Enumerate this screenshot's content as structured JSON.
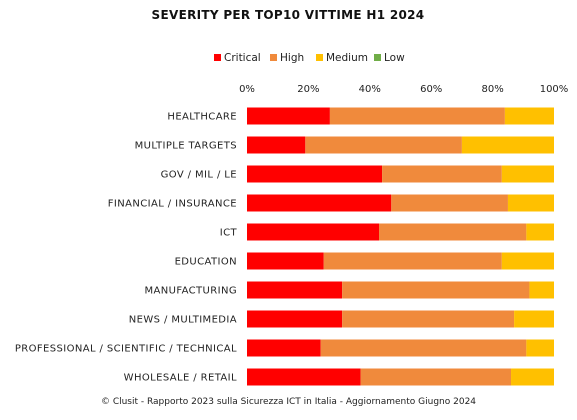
{
  "chart_data": {
    "type": "bar",
    "orientation": "horizontal",
    "stacked": true,
    "percent": true,
    "title": "SEVERITY PER TOP10 VITTIME H1 2024",
    "xlim": [
      0,
      100
    ],
    "x_ticks": [
      "0%",
      "20%",
      "40%",
      "60%",
      "80%",
      "100%"
    ],
    "x_tick_values": [
      0,
      20,
      40,
      60,
      80,
      100
    ],
    "legend_position": "top",
    "grid": false,
    "categories": [
      "HEALTHCARE",
      "MULTIPLE TARGETS",
      "GOV / MIL / LE",
      "FINANCIAL / INSURANCE",
      "ICT",
      "EDUCATION",
      "MANUFACTURING",
      "NEWS / MULTIMEDIA",
      "PROFESSIONAL / SCIENTIFIC / TECHNICAL",
      "WHOLESALE / RETAIL"
    ],
    "series": [
      {
        "name": "Critical",
        "color": "#ff0000",
        "values": [
          27,
          19,
          44,
          47,
          43,
          25,
          31,
          31,
          24,
          37
        ]
      },
      {
        "name": "High",
        "color": "#f08a3c",
        "values": [
          57,
          51,
          39,
          38,
          48,
          58,
          61,
          56,
          67,
          49
        ]
      },
      {
        "name": "Medium",
        "color": "#ffc000",
        "values": [
          16,
          30,
          17,
          15,
          9,
          17,
          8,
          13,
          9,
          14
        ]
      },
      {
        "name": "Low",
        "color": "#70ad47",
        "values": [
          0,
          0,
          0,
          0,
          0,
          0,
          0,
          0,
          0,
          0
        ]
      }
    ]
  },
  "footer": "© Clusit - Rapporto 2023 sulla Sicurezza ICT in Italia - Aggiornamento Giugno 2024"
}
